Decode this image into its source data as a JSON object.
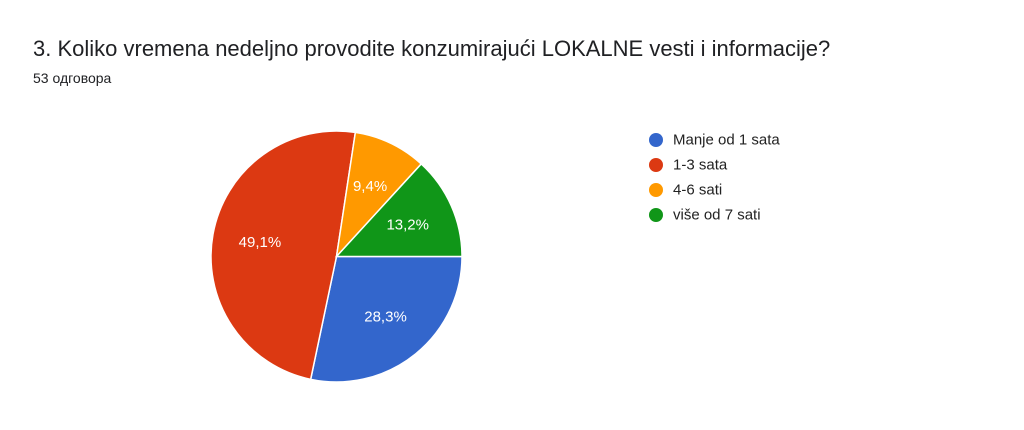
{
  "header": {
    "title": "3. Koliko vremena nedeljno provodite konzumirajući LOKALNE vesti i informacije?",
    "response_count": "53 одговора"
  },
  "chart_data": {
    "type": "pie",
    "title": "3. Koliko vremena nedeljno provodite konzumirajući LOKALNE vesti i informacije?",
    "legend_position": "right",
    "slices": [
      {
        "name": "Manje od 1 sata",
        "value": 28.3,
        "label": "28,3%",
        "color": "#3366cc"
      },
      {
        "name": "1-3 sata",
        "value": 49.1,
        "label": "49,1%",
        "color": "#dc3912"
      },
      {
        "name": "4-6 sati",
        "value": 9.4,
        "label": "9,4%",
        "color": "#ff9900"
      },
      {
        "name": "više od 7 sati",
        "value": 13.2,
        "label": "13,2%",
        "color": "#109618"
      }
    ]
  }
}
